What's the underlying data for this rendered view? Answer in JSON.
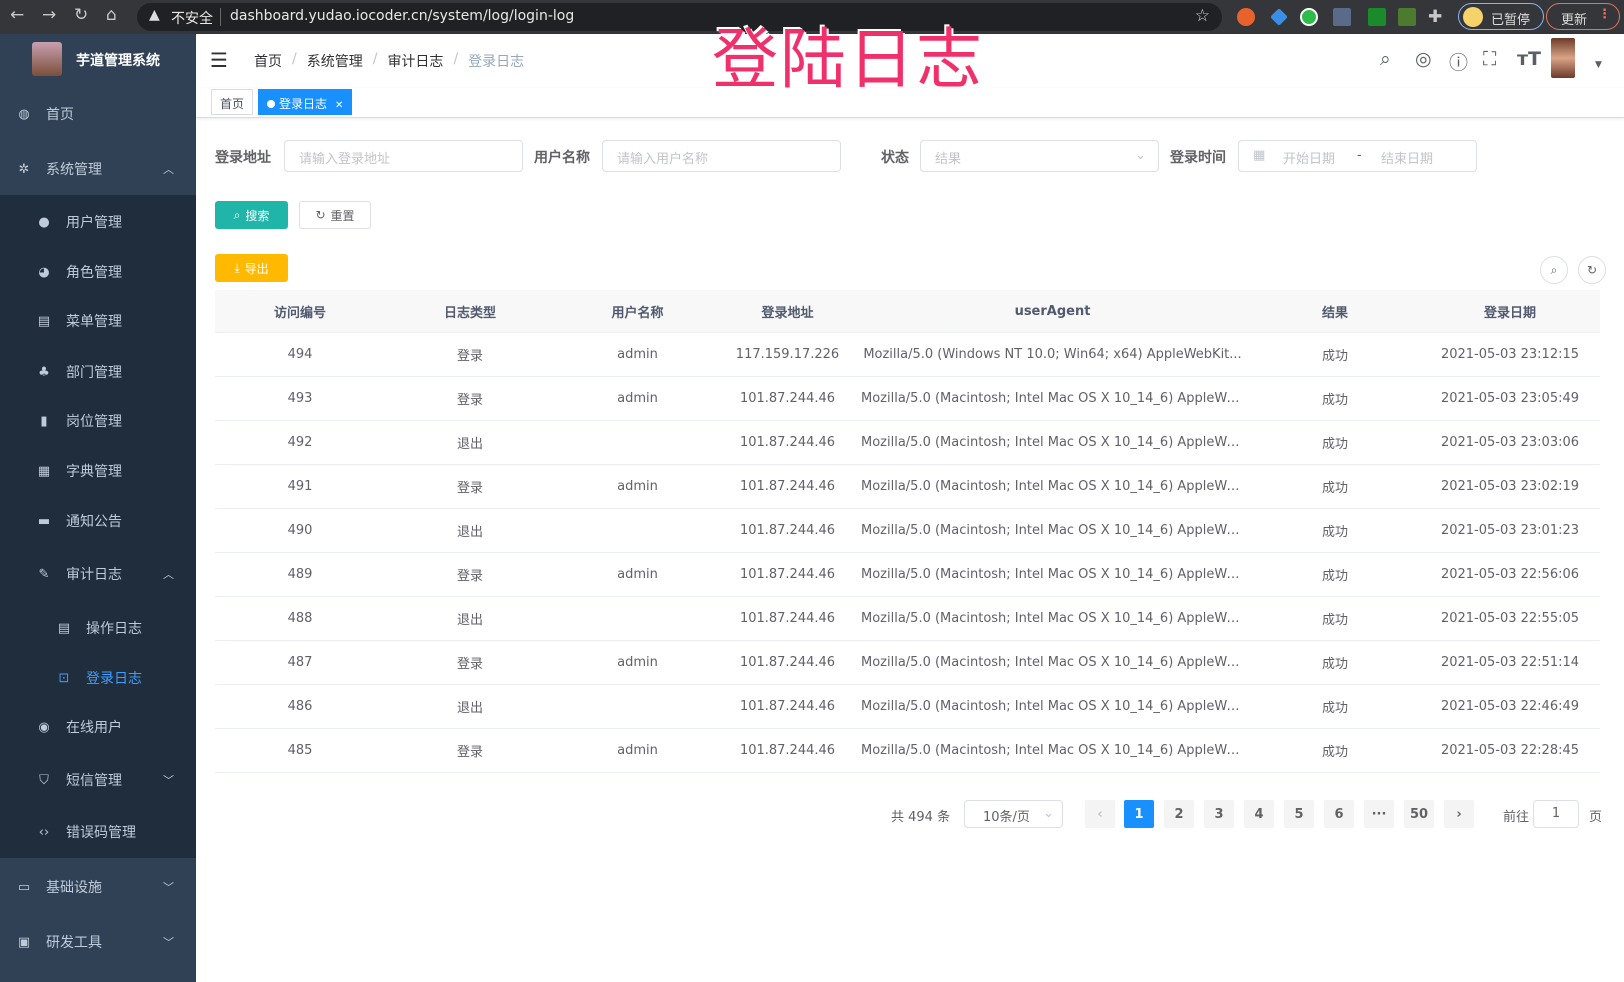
{
  "browser": {
    "insecure_label": "不安全",
    "url": "dashboard.yudao.iocoder.cn/system/log/login-log",
    "profile_label": "已暂停",
    "update_label": "更新"
  },
  "overlay_title": "登陆日志",
  "sidebar": {
    "title": "芋道管理系统",
    "items": [
      {
        "label": "首页",
        "icon": "dashboard-icon"
      },
      {
        "label": "系统管理",
        "icon": "gear-icon"
      },
      {
        "label": "用户管理",
        "icon": "user-icon"
      },
      {
        "label": "角色管理",
        "icon": "role-icon"
      },
      {
        "label": "菜单管理",
        "icon": "menu-icon"
      },
      {
        "label": "部门管理",
        "icon": "tree-icon"
      },
      {
        "label": "岗位管理",
        "icon": "post-icon"
      },
      {
        "label": "字典管理",
        "icon": "dict-icon"
      },
      {
        "label": "通知公告",
        "icon": "message-icon"
      },
      {
        "label": "审计日志",
        "icon": "log-icon"
      },
      {
        "label": "操作日志",
        "icon": "form-icon"
      },
      {
        "label": "登录日志",
        "icon": "login-log-icon"
      },
      {
        "label": "在线用户",
        "icon": "online-icon"
      },
      {
        "label": "短信管理",
        "icon": "shield-icon"
      },
      {
        "label": "错误码管理",
        "icon": "code-icon"
      },
      {
        "label": "基础设施",
        "icon": "monitor-icon"
      },
      {
        "label": "研发工具",
        "icon": "tool-icon"
      }
    ]
  },
  "breadcrumb": [
    "首页",
    "系统管理",
    "审计日志",
    "登录日志"
  ],
  "tags": [
    {
      "label": "首页"
    },
    {
      "label": "登录日志",
      "active": true
    }
  ],
  "filters": {
    "address_label": "登录地址",
    "address_placeholder": "请输入登录地址",
    "username_label": "用户名称",
    "username_placeholder": "请输入用户名称",
    "status_label": "状态",
    "status_placeholder": "结果",
    "time_label": "登录时间",
    "start_placeholder": "开始日期",
    "range_sep": "-",
    "end_placeholder": "结束日期",
    "search_button": "搜索",
    "reset_button": "重置",
    "export_button": "导出"
  },
  "table": {
    "headers": [
      "访问编号",
      "日志类型",
      "用户名称",
      "登录地址",
      "userAgent",
      "结果",
      "登录日期"
    ],
    "rows": [
      [
        "494",
        "登录",
        "admin",
        "117.159.17.226",
        "Mozilla/5.0 (Windows NT 10.0; Win64; x64) AppleWebKit...",
        "成功",
        "2021-05-03 23:12:15"
      ],
      [
        "493",
        "登录",
        "admin",
        "101.87.244.46",
        "Mozilla/5.0 (Macintosh; Intel Mac OS X 10_14_6) AppleWe...",
        "成功",
        "2021-05-03 23:05:49"
      ],
      [
        "492",
        "退出",
        "",
        "101.87.244.46",
        "Mozilla/5.0 (Macintosh; Intel Mac OS X 10_14_6) AppleWe...",
        "成功",
        "2021-05-03 23:03:06"
      ],
      [
        "491",
        "登录",
        "admin",
        "101.87.244.46",
        "Mozilla/5.0 (Macintosh; Intel Mac OS X 10_14_6) AppleWe...",
        "成功",
        "2021-05-03 23:02:19"
      ],
      [
        "490",
        "退出",
        "",
        "101.87.244.46",
        "Mozilla/5.0 (Macintosh; Intel Mac OS X 10_14_6) AppleWe...",
        "成功",
        "2021-05-03 23:01:23"
      ],
      [
        "489",
        "登录",
        "admin",
        "101.87.244.46",
        "Mozilla/5.0 (Macintosh; Intel Mac OS X 10_14_6) AppleWe...",
        "成功",
        "2021-05-03 22:56:06"
      ],
      [
        "488",
        "退出",
        "",
        "101.87.244.46",
        "Mozilla/5.0 (Macintosh; Intel Mac OS X 10_14_6) AppleWe...",
        "成功",
        "2021-05-03 22:55:05"
      ],
      [
        "487",
        "登录",
        "admin",
        "101.87.244.46",
        "Mozilla/5.0 (Macintosh; Intel Mac OS X 10_14_6) AppleWe...",
        "成功",
        "2021-05-03 22:51:14"
      ],
      [
        "486",
        "退出",
        "",
        "101.87.244.46",
        "Mozilla/5.0 (Macintosh; Intel Mac OS X 10_14_6) AppleWe...",
        "成功",
        "2021-05-03 22:46:49"
      ],
      [
        "485",
        "登录",
        "admin",
        "101.87.244.46",
        "Mozilla/5.0 (Macintosh; Intel Mac OS X 10_14_6) AppleWe...",
        "成功",
        "2021-05-03 22:28:45"
      ]
    ]
  },
  "pagination": {
    "total_label": "共 494 条",
    "page_size": "10条/页",
    "pages": [
      "1",
      "2",
      "3",
      "4",
      "5",
      "6",
      "···",
      "50"
    ],
    "current": "1",
    "goto_label": "前往",
    "goto_value": "1",
    "page_suffix": "页"
  },
  "colors": {
    "sidebar": "#304156",
    "primary": "#1890ff",
    "search": "#1fb5a8",
    "export": "#ffba00",
    "overlay": "#f0306a"
  }
}
